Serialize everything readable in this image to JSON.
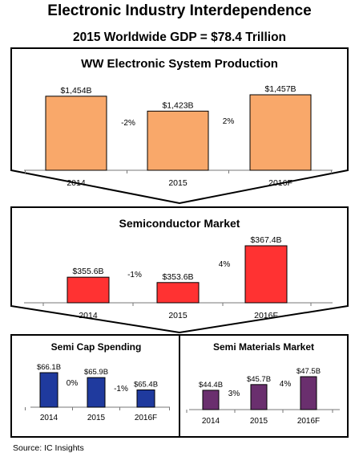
{
  "header": {
    "title": "Electronic Industry Interdependence",
    "subtitle": "2015 Worldwide GDP = $78.4 Trillion"
  },
  "source": "Source:  IC Insights",
  "chart_data": [
    {
      "type": "bar",
      "title": "WW Electronic System Production",
      "categories": [
        "2014",
        "2015",
        "2016F"
      ],
      "values": [
        1454,
        1423,
        1457
      ],
      "value_labels": [
        "$1,454B",
        "$1,423B",
        "$1,457B"
      ],
      "growth_labels": [
        "-2%",
        "2%"
      ],
      "unit": "$B",
      "color": "#f9a86a"
    },
    {
      "type": "bar",
      "title": "Semiconductor Market",
      "categories": [
        "2014",
        "2015",
        "2016F"
      ],
      "values": [
        355.6,
        353.6,
        367.4
      ],
      "value_labels": [
        "$355.6B",
        "$353.6B",
        "$367.4B"
      ],
      "growth_labels": [
        "-1%",
        "4%"
      ],
      "unit": "$B",
      "color": "#ff3232"
    },
    {
      "type": "bar",
      "title": "Semi Cap Spending",
      "categories": [
        "2014",
        "2015",
        "2016F"
      ],
      "values": [
        66.1,
        65.9,
        65.4
      ],
      "value_labels": [
        "$66.1B",
        "$65.9B",
        "$65.4B"
      ],
      "growth_labels": [
        "0%",
        "-1%"
      ],
      "unit": "$B",
      "color": "#1f3a9e"
    },
    {
      "type": "bar",
      "title": "Semi Materials Market",
      "categories": [
        "2014",
        "2015",
        "2016F"
      ],
      "values": [
        44.4,
        45.7,
        47.5
      ],
      "value_labels": [
        "$44.4B",
        "$45.7B",
        "$47.5B"
      ],
      "growth_labels": [
        "3%",
        "4%"
      ],
      "unit": "$B",
      "color": "#6a2f6e"
    }
  ]
}
